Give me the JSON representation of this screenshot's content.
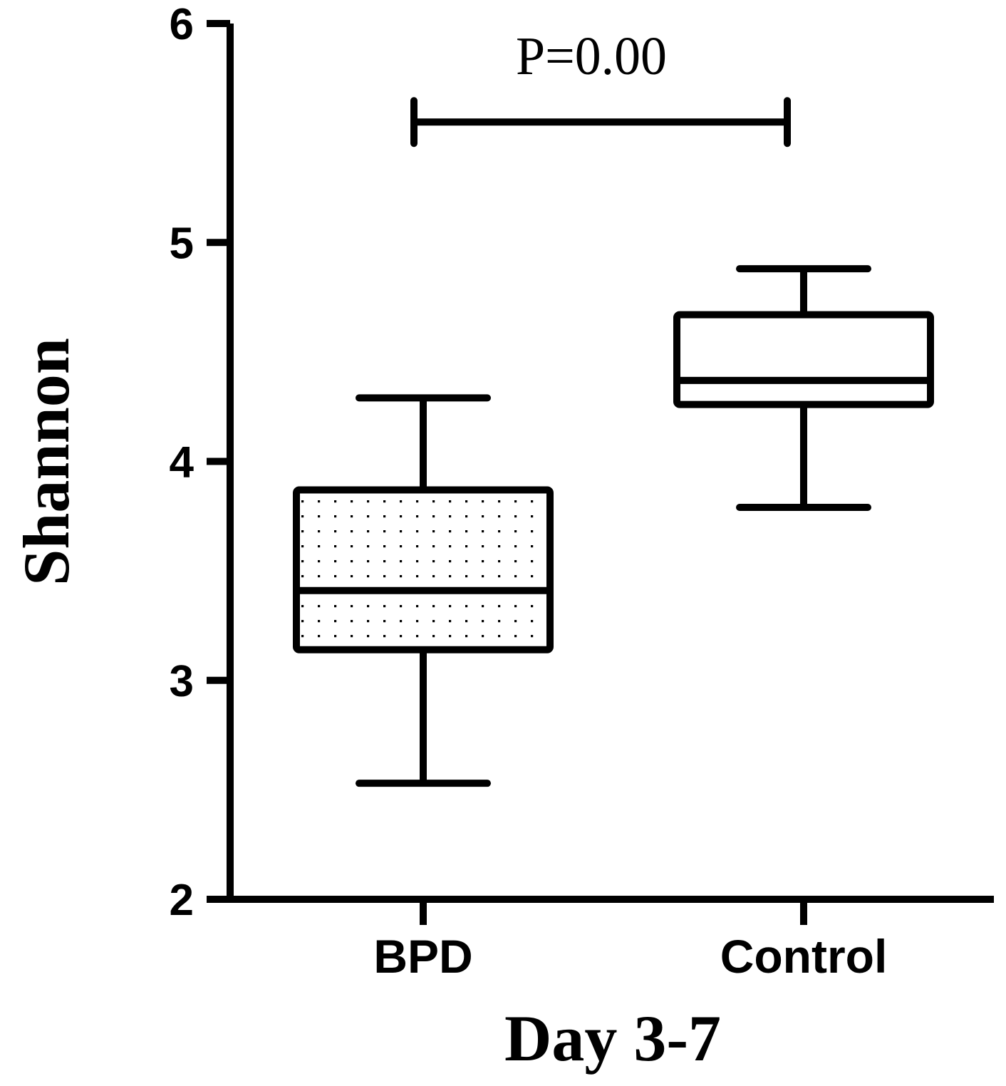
{
  "chart_data": {
    "type": "box",
    "xlabel": "Day 3-7",
    "ylabel": "Shannon",
    "ylim": [
      2,
      6
    ],
    "yticks": [
      "2",
      "3",
      "4",
      "5",
      "6"
    ],
    "categories": [
      "BPD",
      "Control"
    ],
    "boxes": [
      {
        "category": "BPD",
        "min": 2.53,
        "q1": 3.14,
        "median": 3.41,
        "q3": 3.87,
        "max": 4.29,
        "fill": "dotted"
      },
      {
        "category": "Control",
        "min": 3.79,
        "q1": 4.26,
        "median": 4.37,
        "q3": 4.67,
        "max": 4.88,
        "fill": "none"
      }
    ],
    "annotation": {
      "text": "P=0.00",
      "bracket_y": 5.55
    },
    "colors": {
      "stroke": "#000000",
      "dots": "#000000",
      "background": "#ffffff"
    }
  }
}
